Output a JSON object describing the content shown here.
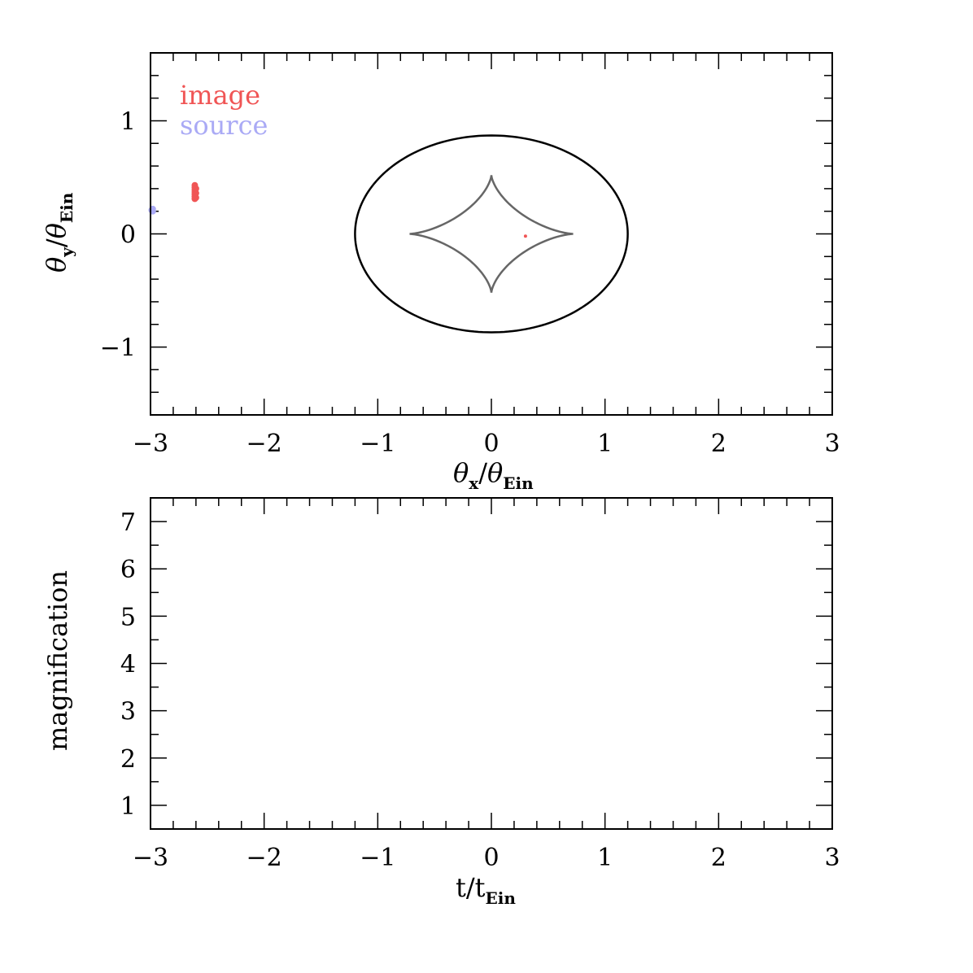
{
  "colors": {
    "image": "#f05555",
    "source": "#aaaaf5",
    "critical_curve": "#000000",
    "caustic": "#666666",
    "frame": "#000000"
  },
  "chart_data": [
    {
      "type": "scatter",
      "panel": "lens-plane",
      "xlabel": {
        "main": "θx/θ",
        "symbol": "θ",
        "sub": "x",
        "slash": "/",
        "symbol2": "θ",
        "sub2": "Ein"
      },
      "ylabel": {
        "symbol": "θ",
        "sub": "y",
        "slash": "/",
        "symbol2": "θ",
        "sub2": "Ein"
      },
      "xlim": [
        -3,
        3
      ],
      "ylim": [
        -1.6,
        1.6
      ],
      "xticks": [
        -3,
        -2,
        -1,
        0,
        1,
        2,
        3
      ],
      "xtick_labels": [
        "−3",
        "−2",
        "−1",
        "0",
        "1",
        "2",
        "3"
      ],
      "yticks": [
        -1,
        0,
        1
      ],
      "ytick_labels": [
        "−1",
        "0",
        "1"
      ],
      "legend": {
        "position": "top-left",
        "entries": [
          {
            "label": "image",
            "color": "#f05555"
          },
          {
            "label": "source",
            "color": "#aaaaf5"
          }
        ]
      },
      "critical_curve": {
        "center": [
          0,
          0
        ],
        "a": 1.2,
        "b": 0.87
      },
      "caustic": {
        "center": [
          0,
          0
        ],
        "half_width": 0.72,
        "half_height": 0.52
      },
      "image_points": [
        {
          "x": -2.61,
          "y": 0.31
        },
        {
          "x": -2.61,
          "y": 0.33
        },
        {
          "x": -2.61,
          "y": 0.35
        },
        {
          "x": -2.61,
          "y": 0.37
        },
        {
          "x": -2.61,
          "y": 0.39
        },
        {
          "x": -2.61,
          "y": 0.41
        },
        {
          "x": -2.61,
          "y": 0.43
        },
        {
          "x": -2.6,
          "y": 0.32
        },
        {
          "x": -2.6,
          "y": 0.36
        },
        {
          "x": -2.6,
          "y": 0.4
        },
        {
          "x": 0.3,
          "y": -0.02
        }
      ],
      "source_points": [
        {
          "x": -2.98,
          "y": 0.2
        },
        {
          "x": -2.98,
          "y": 0.22
        },
        {
          "x": -2.99,
          "y": 0.21
        }
      ]
    },
    {
      "type": "line",
      "panel": "light-curve",
      "xlabel": {
        "main": "t/t",
        "sub": "Ein"
      },
      "ylabel": "magnification",
      "xlim": [
        -3,
        3
      ],
      "ylim": [
        0.5,
        7.5
      ],
      "xticks": [
        -3,
        -2,
        -1,
        0,
        1,
        2,
        3
      ],
      "xtick_labels": [
        "−3",
        "−2",
        "−1",
        "0",
        "1",
        "2",
        "3"
      ],
      "yticks": [
        1,
        2,
        3,
        4,
        5,
        6,
        7
      ],
      "ytick_labels": [
        "1",
        "2",
        "3",
        "4",
        "5",
        "6",
        "7"
      ],
      "series": []
    }
  ]
}
